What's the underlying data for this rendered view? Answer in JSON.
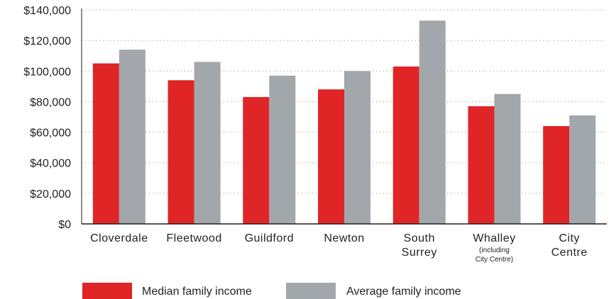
{
  "chart_data": {
    "type": "bar",
    "title": "",
    "xlabel": "",
    "ylabel": "",
    "ylim": [
      0,
      140000
    ],
    "y_ticks": [
      0,
      20000,
      40000,
      60000,
      80000,
      100000,
      120000,
      140000
    ],
    "y_tick_labels": [
      "$0",
      "$20,000",
      "$40,000",
      "$60,000",
      "$80,000",
      "$100,000",
      "$120,000",
      "$140,000"
    ],
    "grid": "horizontal dotted",
    "legend_position": "bottom-left",
    "categories": [
      "Cloverdale",
      "Fleetwood",
      "Guildford",
      "Newton",
      "South Surrey",
      "Whalley",
      "City Centre"
    ],
    "category_label_lines": [
      [
        "Cloverdale"
      ],
      [
        "Fleetwood"
      ],
      [
        "Guildford"
      ],
      [
        "Newton"
      ],
      [
        "South",
        "Surrey"
      ],
      [
        "Whalley"
      ],
      [
        "City",
        "Centre"
      ]
    ],
    "category_notes": [
      "",
      "",
      "",
      "",
      "",
      "(including City Centre)",
      ""
    ],
    "category_note_lines": [
      [],
      [],
      [],
      [],
      [],
      [
        "(including",
        "City Centre)"
      ],
      []
    ],
    "series": [
      {
        "name": "Median family income",
        "color": "#e02526",
        "values": [
          105000,
          94000,
          83000,
          88000,
          103000,
          77000,
          64000
        ]
      },
      {
        "name": "Average family income",
        "color": "#a2a7ab",
        "values": [
          114000,
          106000,
          97000,
          100000,
          133000,
          85000,
          71000
        ]
      }
    ]
  }
}
